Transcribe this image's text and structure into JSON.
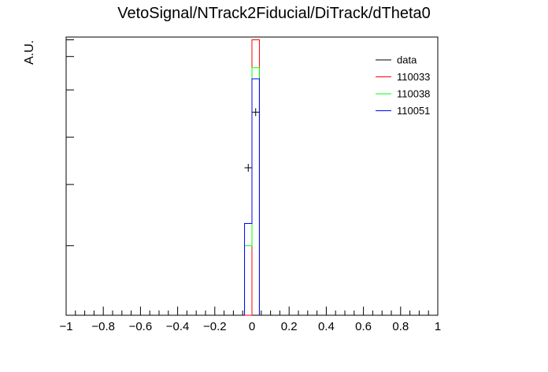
{
  "chart_data": {
    "type": "histogram",
    "title": "VetoSignal/NTrack2Fiducial/DiTrack/dTheta0",
    "xlabel": "",
    "ylabel": "A.U.",
    "xlim": [
      -1,
      1
    ],
    "ylim": [
      0,
      1.0
    ],
    "grid": false,
    "legend_position": "top-right",
    "x_tick_labels": [
      "−1",
      "−0.8",
      "−0.6",
      "−0.4",
      "−0.2",
      "0",
      "0.2",
      "0.4",
      "0.6",
      "0.8",
      "1"
    ],
    "x_ticks": [
      -1,
      -0.8,
      -0.6,
      -0.4,
      -0.2,
      0,
      0.2,
      0.4,
      0.6,
      0.8,
      1
    ],
    "y_ticks": [
      0.25,
      0.47,
      0.64,
      0.81,
      0.93,
      0.99
    ],
    "bin_edges": [
      -0.04,
      0.0,
      0.04
    ],
    "series": [
      {
        "name": "data",
        "color": "#000000",
        "kind": "points",
        "x": [
          -0.02,
          0.02
        ],
        "y": [
          0.53,
          0.73
        ],
        "xerr": 0.02
      },
      {
        "name": "110033",
        "color": "#ff0000",
        "kind": "step",
        "values": [
          0.0,
          0.99
        ]
      },
      {
        "name": "110038",
        "color": "#00ff00",
        "kind": "step",
        "values": [
          0.25,
          0.89
        ]
      },
      {
        "name": "110051",
        "color": "#0000ff",
        "kind": "step",
        "values": [
          0.33,
          0.85
        ]
      }
    ]
  }
}
